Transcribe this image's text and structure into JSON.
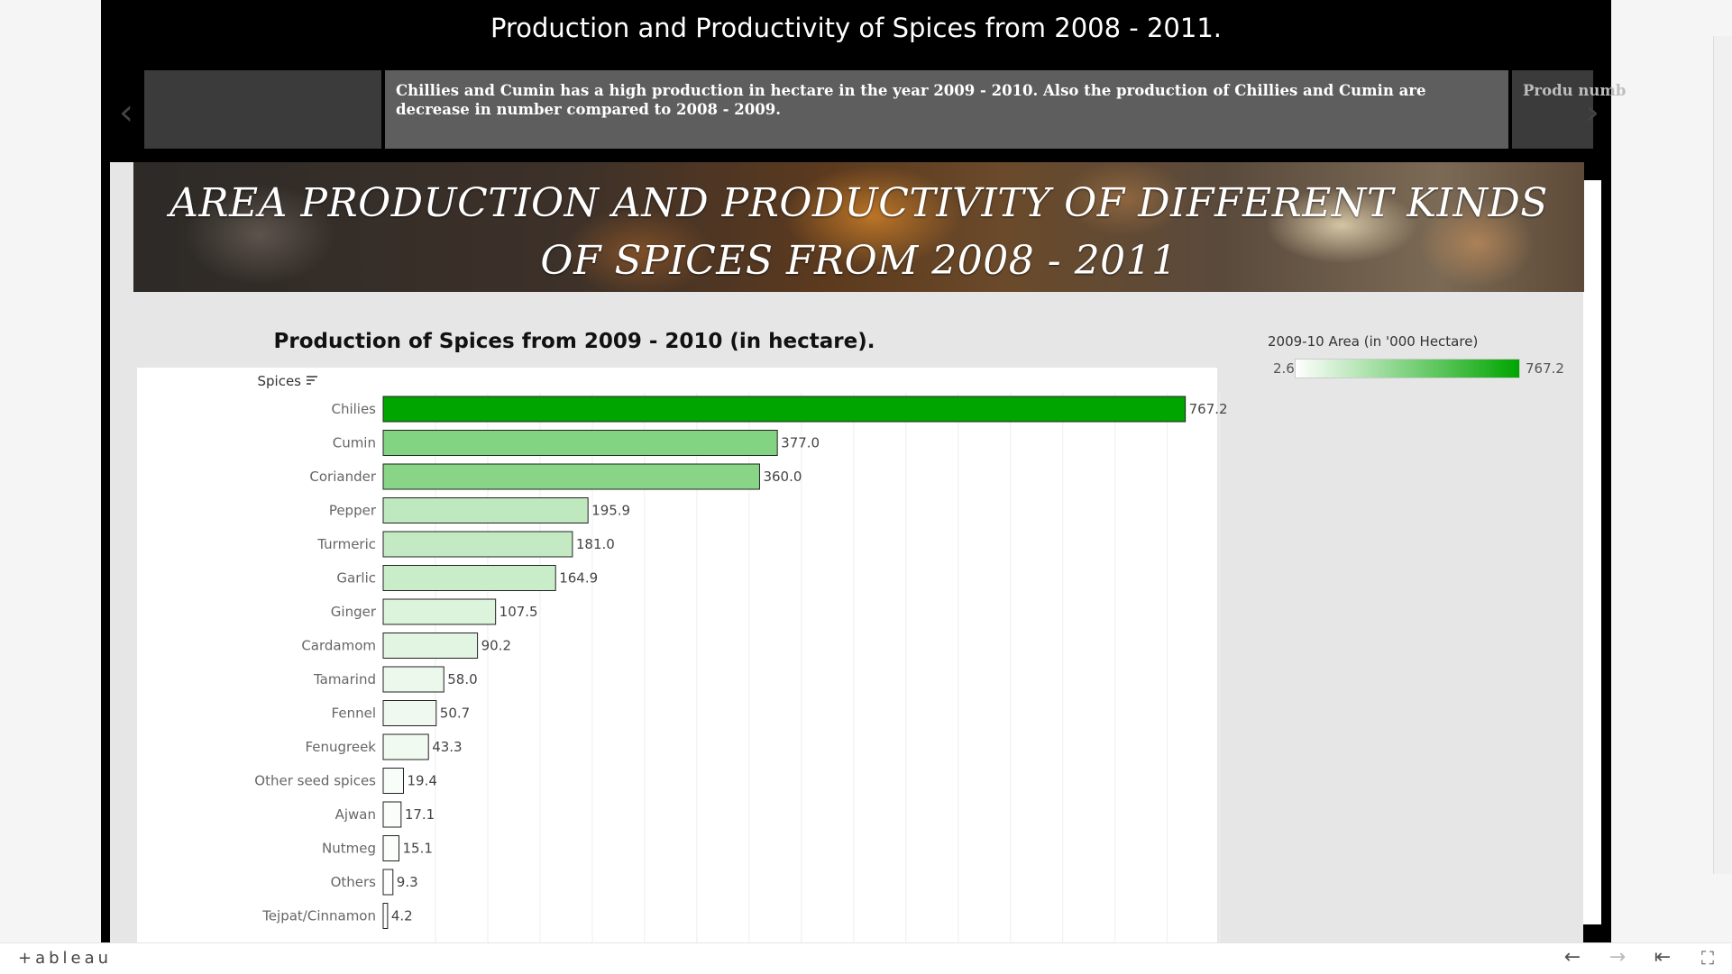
{
  "story": {
    "title": "Production and Productivity of Spices from 2008 - 2011.",
    "points": [
      {
        "text": ""
      },
      {
        "text": "Chillies and Cumin has a high production  in hectare  in the year 2009 - 2010. Also the production of Chillies and Cumin are decrease in number compared to 2008 - 2009."
      },
      {
        "text": "Produ numb"
      }
    ],
    "prev_icon": "chevron-left-icon",
    "next_icon": "chevron-right-icon"
  },
  "dashboard": {
    "banner_title": "AREA PRODUCTION AND PRODUCTIVITY OF DIFFERENT KINDS OF SPICES FROM 2008 - 2011"
  },
  "legend": {
    "title": "2009-10 Area (in '000 Hectare)",
    "min": "2.6",
    "max": "767.2",
    "colors": [
      "#ffffff",
      "#00a500"
    ]
  },
  "chart_data": {
    "type": "bar",
    "orientation": "horizontal",
    "title": "Production of Spices from 2009 - 2010 (in hectare).",
    "ylabel": "Spices",
    "categories": [
      "Chilies",
      "Cumin",
      "Coriander",
      "Pepper",
      "Turmeric",
      "Garlic",
      "Ginger",
      "Cardamom",
      "Tamarind",
      "Fennel",
      "Fenugreek",
      "Other seed spices",
      "Ajwan",
      "Nutmeg",
      "Others",
      "Tejpat/Cinnamon"
    ],
    "values": [
      767.2,
      377.0,
      360.0,
      195.9,
      181.0,
      164.9,
      107.5,
      90.2,
      58.0,
      50.7,
      43.3,
      19.4,
      17.1,
      15.1,
      9.3,
      4.2
    ],
    "value_labels": [
      "767.2",
      "377.0",
      "360.0",
      "195.9",
      "181.0",
      "164.9",
      "107.5",
      "90.2",
      "58.0",
      "50.7",
      "43.3",
      "19.4",
      "17.1",
      "15.1",
      "9.3",
      "4.2"
    ],
    "xlim": [
      0,
      800
    ],
    "color_min": 2.6,
    "color_max": 767.2,
    "color_range": [
      "#ffffff",
      "#00a500"
    ],
    "grid": true,
    "sorted": "descending"
  },
  "footer": {
    "logo": "+ableau",
    "logo_icon": "tableau-cross-icon",
    "undo_icon": "arrow-left-icon",
    "redo_icon": "arrow-right-icon",
    "revert_icon": "revert-icon",
    "fullscreen_icon": "fullscreen-icon"
  }
}
